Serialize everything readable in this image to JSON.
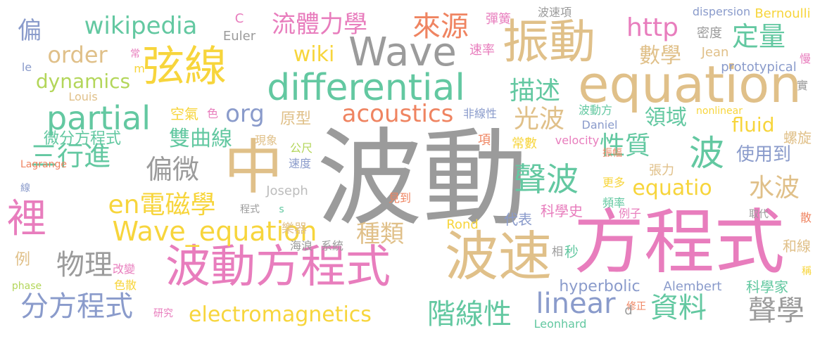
{
  "palette": {
    "gray": "#9b9b9b",
    "pink": "#e87dbd",
    "tan": "#e0c089",
    "yellow": "#f7d53c",
    "green": "#63c8a1",
    "blue": "#8a9bcb",
    "orange": "#ef8461",
    "lime": "#b3d65a",
    "lightgray": "#bdbdbd"
  },
  "words": [
    {
      "text": "波動",
      "c": "gray"
    },
    {
      "text": "方程式",
      "c": "pink"
    },
    {
      "text": "波速",
      "c": "tan"
    },
    {
      "text": "中",
      "c": "tan"
    },
    {
      "text": "波動方程式",
      "c": "pink"
    },
    {
      "text": "equation",
      "c": "tan"
    },
    {
      "text": "振動",
      "c": "tan"
    },
    {
      "text": "Wave",
      "c": "gray"
    },
    {
      "text": "differential",
      "c": "green"
    },
    {
      "text": "partial",
      "c": "green"
    },
    {
      "text": "弦線",
      "c": "yellow"
    },
    {
      "text": "裡",
      "c": "pink"
    },
    {
      "text": "Wave_equation",
      "c": "yellow"
    },
    {
      "text": "wikipedia",
      "c": "green"
    },
    {
      "text": "acoustics",
      "c": "orange"
    },
    {
      "text": "electromagnetics",
      "c": "yellow"
    },
    {
      "text": "分方程式",
      "c": "blue"
    },
    {
      "text": "聲波",
      "c": "green"
    },
    {
      "text": "波",
      "c": "green"
    },
    {
      "text": "linear",
      "c": "blue"
    },
    {
      "text": "階線性",
      "c": "green"
    },
    {
      "text": "資料",
      "c": "green"
    },
    {
      "text": "聲學",
      "c": "gray"
    },
    {
      "text": "來源",
      "c": "orange"
    },
    {
      "text": "流體力學",
      "c": "pink"
    },
    {
      "text": "http",
      "c": "pink"
    },
    {
      "text": "定量",
      "c": "green"
    },
    {
      "text": "order",
      "c": "tan"
    },
    {
      "text": "wiki",
      "c": "yellow"
    },
    {
      "text": "dynamics",
      "c": "lime"
    },
    {
      "text": "org",
      "c": "blue"
    },
    {
      "text": "描述",
      "c": "green"
    },
    {
      "text": "光波",
      "c": "tan"
    },
    {
      "text": "數學",
      "c": "tan"
    },
    {
      "text": "三行進",
      "c": "green"
    },
    {
      "text": "偏微",
      "c": "gray"
    },
    {
      "text": "雙曲線",
      "c": "green"
    },
    {
      "text": "性質",
      "c": "green"
    },
    {
      "text": "en電磁學",
      "c": "yellow"
    },
    {
      "text": "equatio",
      "c": "yellow"
    },
    {
      "text": "水波",
      "c": "tan"
    },
    {
      "text": "種類",
      "c": "tan"
    },
    {
      "text": "物理",
      "c": "gray"
    },
    {
      "text": "微分方程式",
      "c": "green"
    },
    {
      "text": "fluid",
      "c": "yellow"
    },
    {
      "text": "領域",
      "c": "green"
    },
    {
      "text": "使用到",
      "c": "blue"
    },
    {
      "text": "hyperbolic",
      "c": "blue"
    },
    {
      "text": "偏",
      "c": "blue"
    },
    {
      "text": "空氣",
      "c": "yellow"
    },
    {
      "text": "原型",
      "c": "tan"
    },
    {
      "text": "dispersion",
      "c": "blue"
    },
    {
      "text": "Bernoulli",
      "c": "yellow"
    },
    {
      "text": "密度",
      "c": "gray"
    },
    {
      "text": "Jean",
      "c": "tan"
    },
    {
      "text": "prototypical",
      "c": "blue"
    },
    {
      "text": "Euler",
      "c": "gray"
    },
    {
      "text": "Louis",
      "c": "tan"
    },
    {
      "text": "Daniel",
      "c": "blue"
    },
    {
      "text": "Joseph",
      "c": "lightgray"
    },
    {
      "text": "Alembert",
      "c": "blue"
    },
    {
      "text": "Leonhard",
      "c": "green"
    },
    {
      "text": "Lagrange",
      "c": "orange"
    },
    {
      "text": "Rond",
      "c": "yellow"
    },
    {
      "text": "velocity",
      "c": "pink"
    },
    {
      "text": "nonlinear",
      "c": "yellow"
    },
    {
      "text": "phase",
      "c": "lime"
    },
    {
      "text": "科學家",
      "c": "green"
    },
    {
      "text": "科學史",
      "c": "pink"
    },
    {
      "text": "代表",
      "c": "blue"
    },
    {
      "text": "和線",
      "c": "tan"
    },
    {
      "text": "樂器",
      "c": "tan"
    },
    {
      "text": "波速項",
      "c": "gray"
    },
    {
      "text": "彈簧",
      "c": "pink"
    },
    {
      "text": "速率",
      "c": "pink"
    },
    {
      "text": "波動方",
      "c": "green"
    },
    {
      "text": "非線性",
      "c": "blue"
    },
    {
      "text": "現象",
      "c": "tan"
    },
    {
      "text": "公尺",
      "c": "lime"
    },
    {
      "text": "速度",
      "c": "blue"
    },
    {
      "text": "常數",
      "c": "yellow"
    },
    {
      "text": "項",
      "c": "orange"
    },
    {
      "text": "振幅",
      "c": "orange"
    },
    {
      "text": "張力",
      "c": "tan"
    },
    {
      "text": "螺旋",
      "c": "tan"
    },
    {
      "text": "更多",
      "c": "yellow"
    },
    {
      "text": "頻率",
      "c": "green"
    },
    {
      "text": "例子",
      "c": "pink"
    },
    {
      "text": "取代",
      "c": "gray"
    },
    {
      "text": "見到",
      "c": "orange"
    },
    {
      "text": "海浪",
      "c": "gray"
    },
    {
      "text": "系統",
      "c": "gray"
    },
    {
      "text": "程式",
      "c": "gray"
    },
    {
      "text": "改變",
      "c": "pink"
    },
    {
      "text": "色散",
      "c": "yellow"
    },
    {
      "text": "研究",
      "c": "pink"
    },
    {
      "text": "修正",
      "c": "orange"
    },
    {
      "text": "秒",
      "c": "green"
    },
    {
      "text": "相",
      "c": "gray"
    },
    {
      "text": "例",
      "c": "tan"
    },
    {
      "text": "le",
      "c": "blue"
    },
    {
      "text": "C",
      "c": "pink"
    },
    {
      "text": "m",
      "c": "yellow"
    },
    {
      "text": "常",
      "c": "pink"
    },
    {
      "text": "色",
      "c": "pink"
    },
    {
      "text": "s",
      "c": "green"
    },
    {
      "text": "d",
      "c": "gray"
    },
    {
      "text": "線",
      "c": "blue"
    },
    {
      "text": "慢",
      "c": "pink"
    },
    {
      "text": "實",
      "c": "gray"
    },
    {
      "text": "散",
      "c": "orange"
    },
    {
      "text": "稱",
      "c": "yellow"
    }
  ]
}
